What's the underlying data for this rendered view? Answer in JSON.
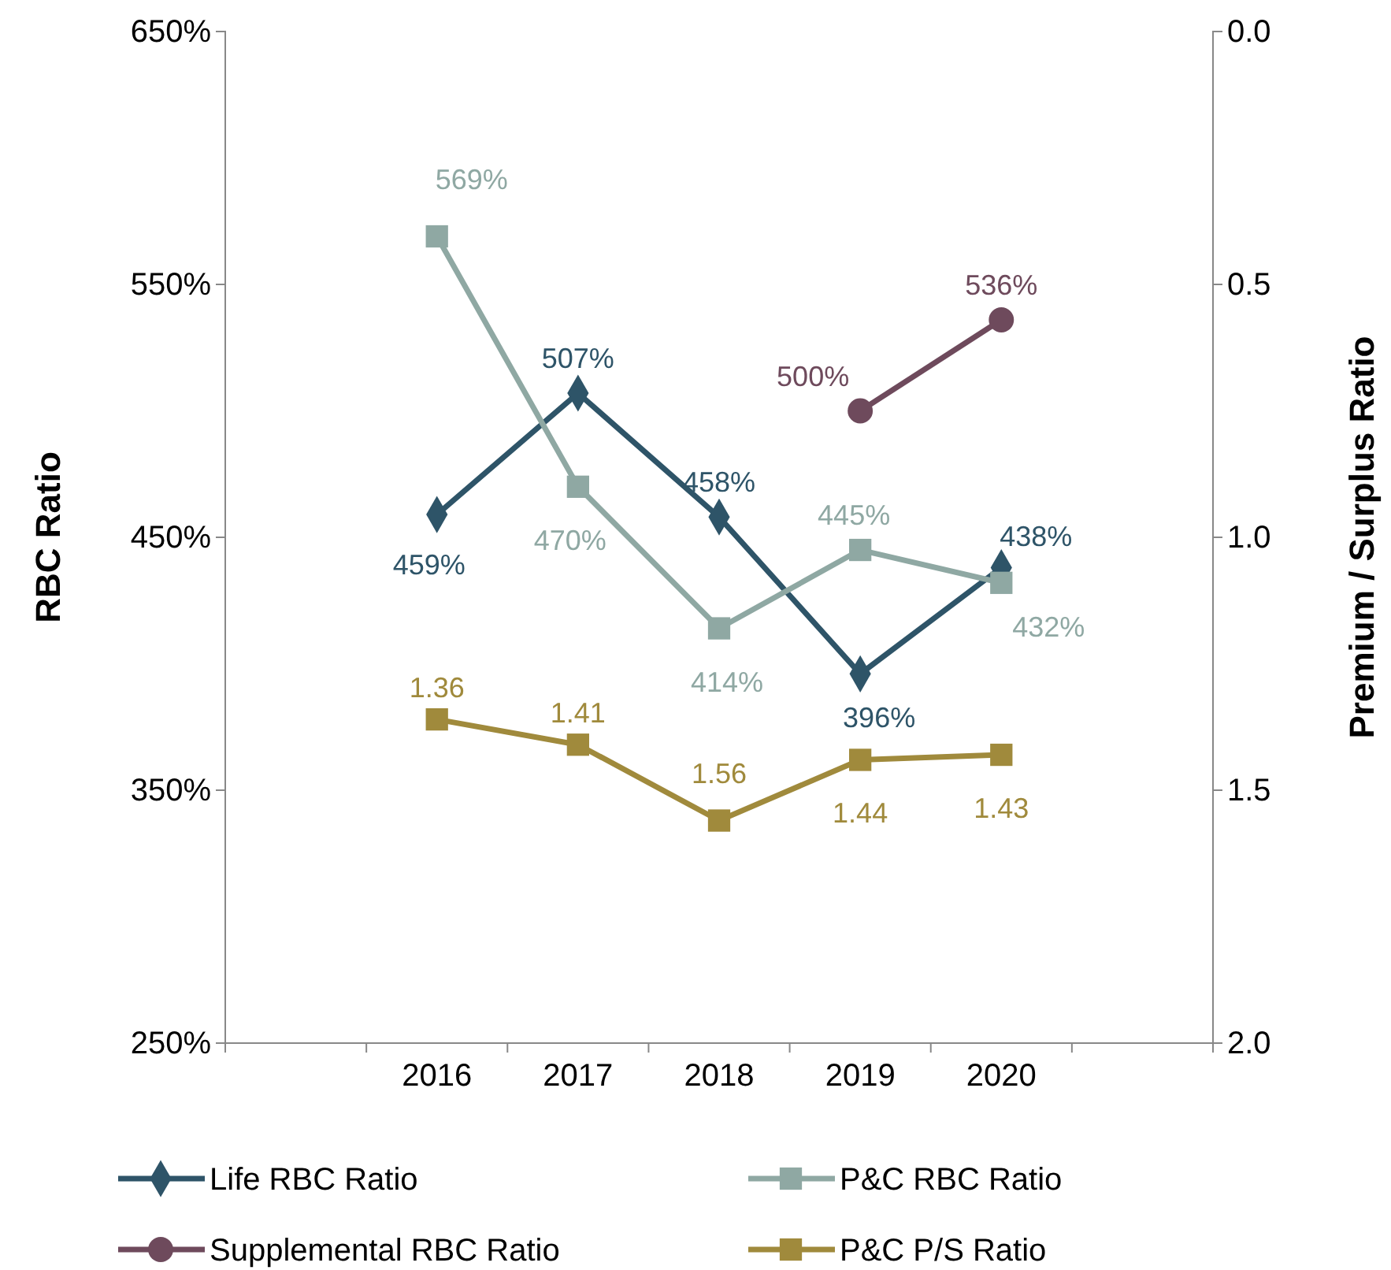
{
  "chart_data": {
    "type": "line",
    "ylabel": "RBC Ratio",
    "y2label": "Premium / Surplus Ratio",
    "categories": [
      null,
      "2016",
      "2017",
      "2018",
      "2019",
      "2020",
      null
    ],
    "ylim": [
      250,
      650
    ],
    "yticks": [
      {
        "value": 250,
        "label": "250%"
      },
      {
        "value": 350,
        "label": "350%"
      },
      {
        "value": 450,
        "label": "450%"
      },
      {
        "value": 550,
        "label": "550%"
      },
      {
        "value": 650,
        "label": "650%"
      }
    ],
    "y2lim": [
      2.0,
      0.0
    ],
    "y2ticks": [
      {
        "value": 0,
        "label": "0.0"
      },
      {
        "value": 0.5,
        "label": "0.5"
      },
      {
        "value": 1,
        "label": "1.0"
      },
      {
        "value": 1.5,
        "label": "1.5"
      },
      {
        "value": 2,
        "label": "2.0"
      }
    ],
    "grid": false,
    "legend": "bottom",
    "line_style": "solid",
    "series": [
      {
        "name": "Life RBC Ratio",
        "color": "#2e5468",
        "marker": "diamond",
        "values": [
          null,
          459,
          507,
          458,
          396,
          438,
          null
        ],
        "value_labels": [
          null,
          "459%",
          "507%",
          "458%",
          "396%",
          "438%",
          null
        ]
      },
      {
        "name": "P&C RBC Ratio",
        "color": "#8fa8a3",
        "marker": "square",
        "values": [
          null,
          569,
          470,
          414,
          445,
          432,
          null
        ],
        "value_labels": [
          null,
          "569%",
          "470%",
          "414%",
          "445%",
          "432%",
          null
        ]
      },
      {
        "name": "Supplemental RBC Ratio",
        "color": "#6e4a5c",
        "marker": "circle",
        "values": [
          null,
          null,
          null,
          null,
          500,
          536,
          null
        ],
        "value_labels": [
          null,
          null,
          null,
          null,
          "500%",
          "536%",
          null
        ]
      },
      {
        "name": "P&C P/S Ratio",
        "color": "#a08a3c",
        "marker": "square",
        "axis": "y2",
        "values": [
          null,
          1.36,
          1.41,
          1.56,
          1.44,
          1.43,
          null
        ],
        "value_labels": [
          null,
          "1.36",
          "1.41",
          "1.56",
          "1.44",
          "1.43",
          null
        ]
      }
    ]
  }
}
